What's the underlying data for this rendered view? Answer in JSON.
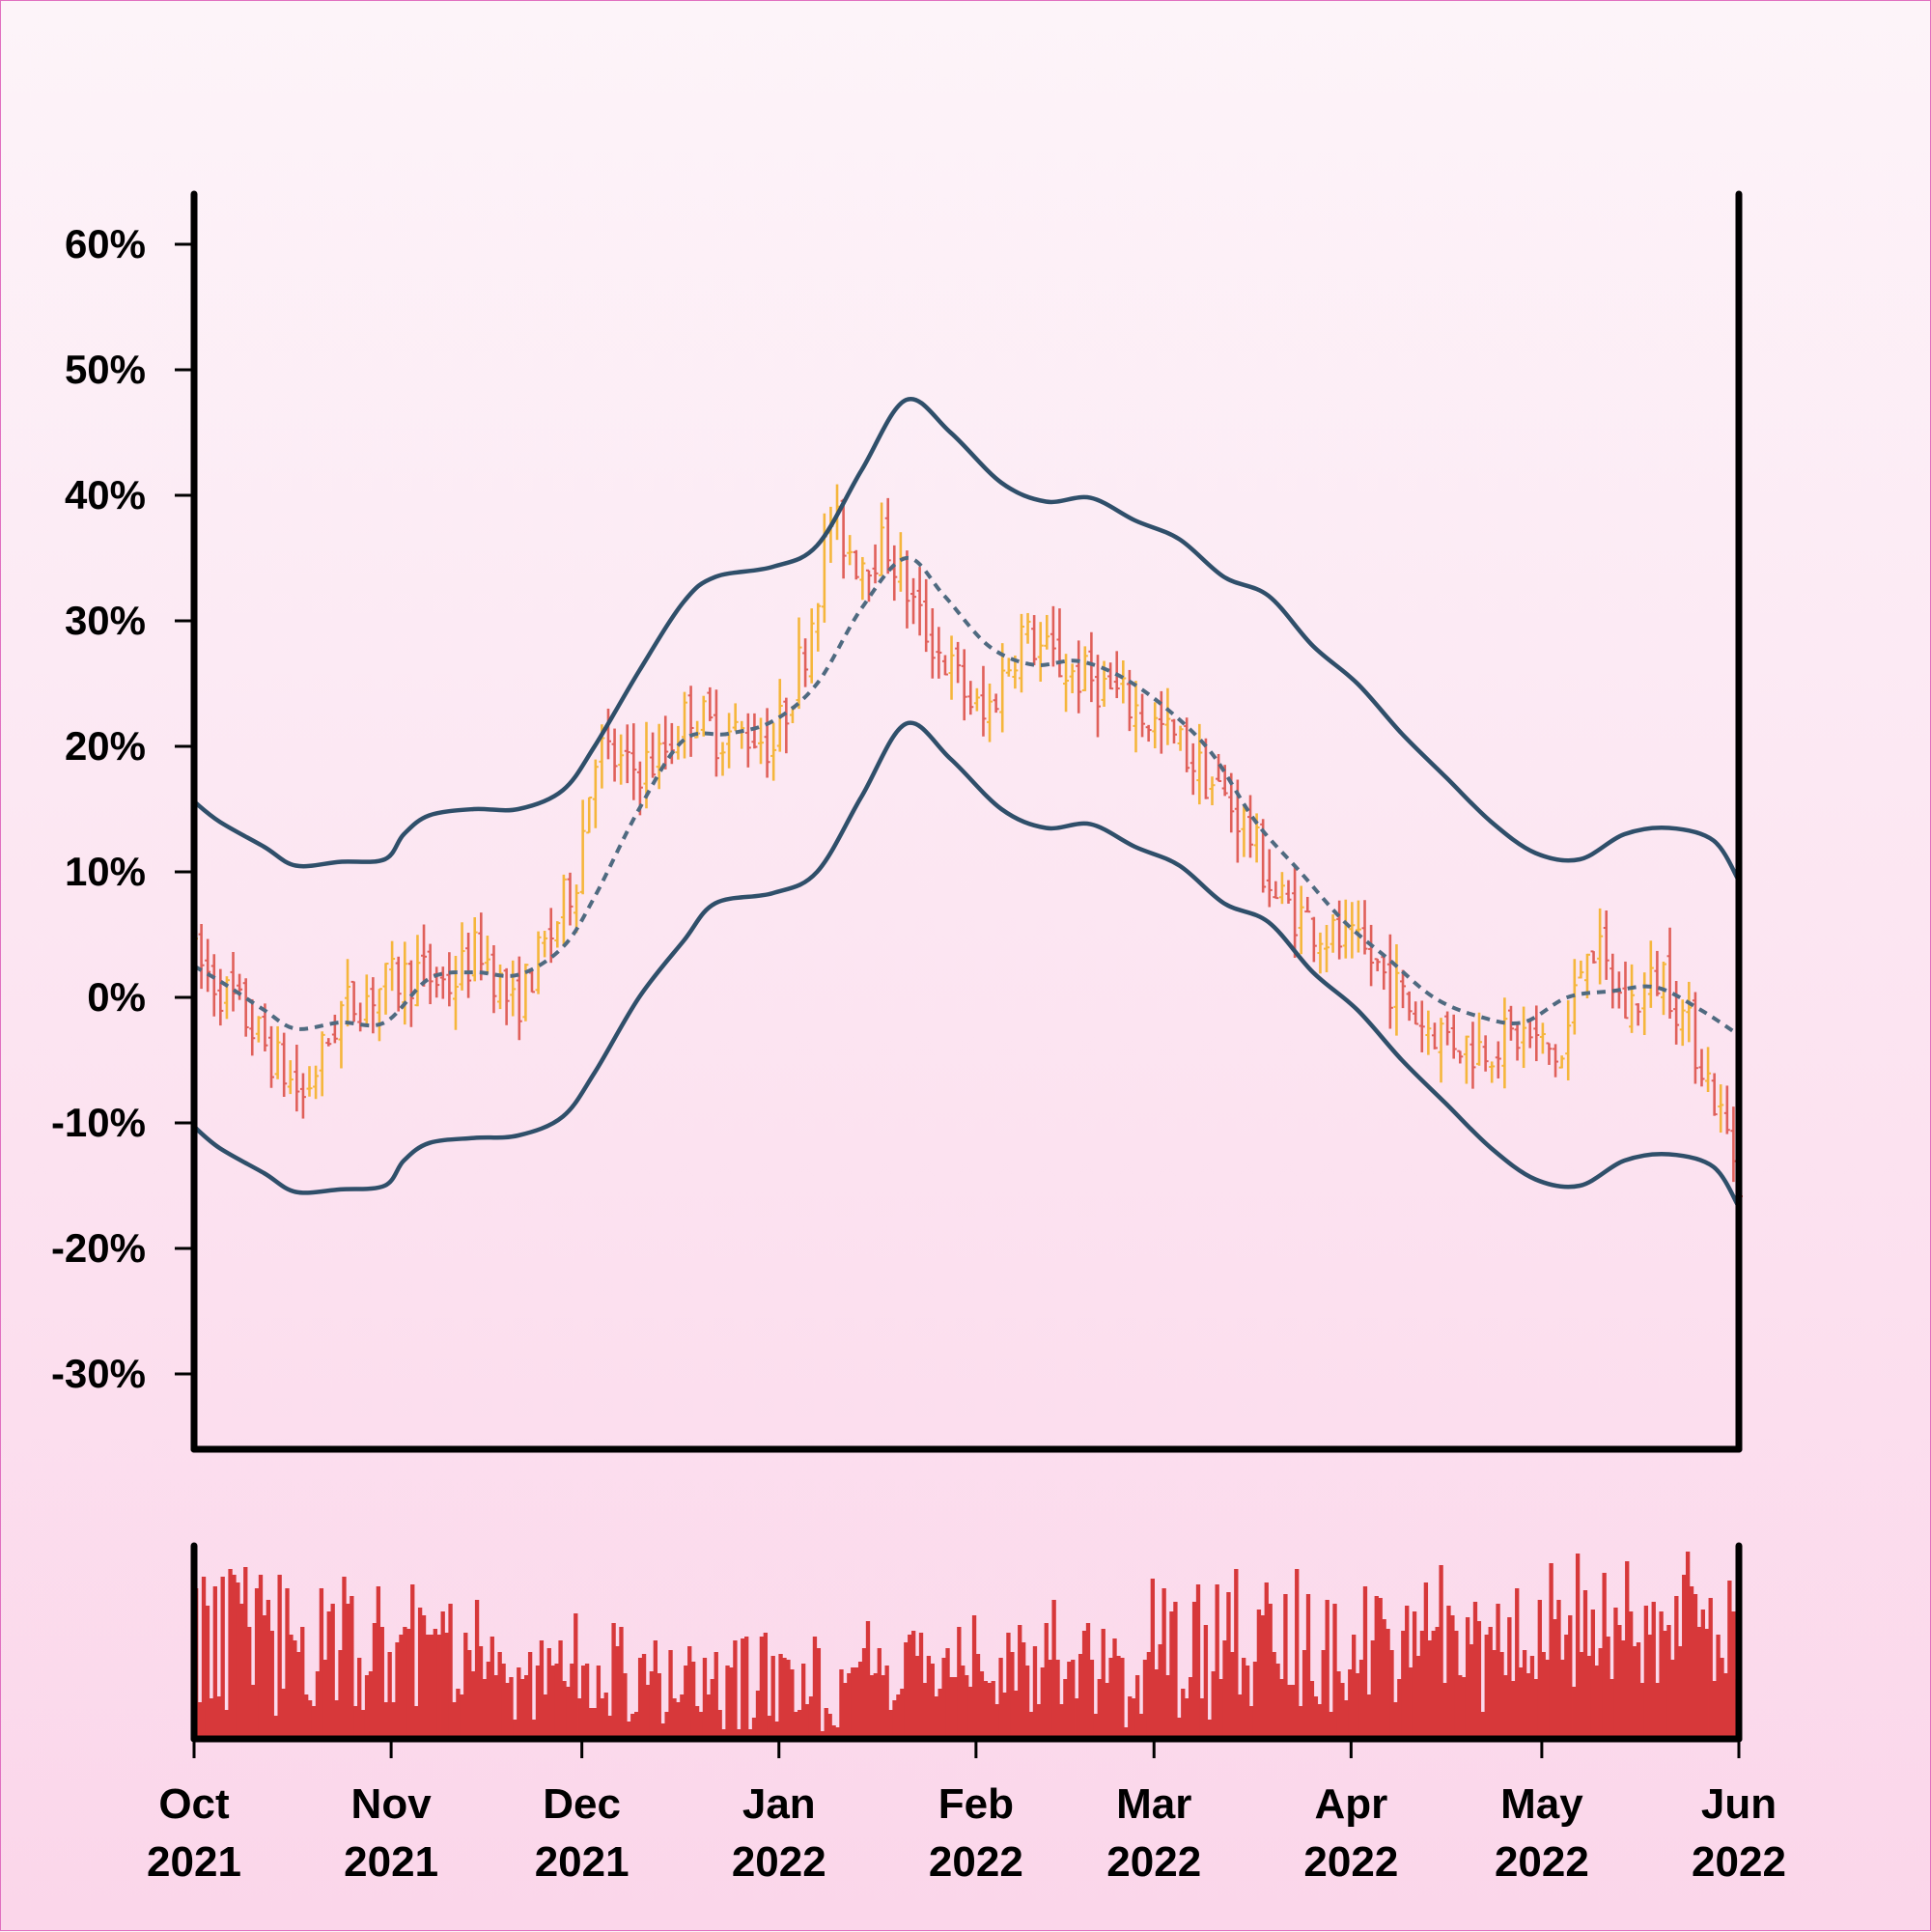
{
  "colors": {
    "up": "#f5b63c",
    "down": "#e0605a",
    "band": "#2f4f6a",
    "ma": "#4f6a80",
    "volume": "#d7383a",
    "axis": "#000000"
  },
  "chart_data": {
    "type": "ohlc",
    "title": "",
    "xlabel": "",
    "ylabel": "",
    "ylim": [
      -36,
      64
    ],
    "yticks": [
      -30,
      -20,
      -10,
      0,
      10,
      20,
      30,
      40,
      50,
      60
    ],
    "ytick_labels": [
      "-30%",
      "-20%",
      "-10%",
      "0%",
      "10%",
      "20%",
      "30%",
      "40%",
      "50%",
      "60%"
    ],
    "xlim": [
      "2021-10-01",
      "2022-06-01"
    ],
    "xticks": [
      {
        "date": "2021-10-01",
        "month": "Oct",
        "year": "2021"
      },
      {
        "date": "2021-11-01",
        "month": "Nov",
        "year": "2021"
      },
      {
        "date": "2021-12-01",
        "month": "Dec",
        "year": "2021"
      },
      {
        "date": "2022-01-01",
        "month": "Jan",
        "year": "2022"
      },
      {
        "date": "2022-02-01",
        "month": "Feb",
        "year": "2022"
      },
      {
        "date": "2022-03-01",
        "month": "Mar",
        "year": "2022"
      },
      {
        "date": "2022-04-01",
        "month": "Apr",
        "year": "2022"
      },
      {
        "date": "2022-05-01",
        "month": "May",
        "year": "2022"
      },
      {
        "date": "2022-06-01",
        "month": "Jun",
        "year": "2022"
      }
    ],
    "price_anchors": [
      [
        "2021-10-01",
        3
      ],
      [
        "2021-10-08",
        -1
      ],
      [
        "2021-10-15",
        -6
      ],
      [
        "2021-10-18",
        -8
      ],
      [
        "2021-10-24",
        -1
      ],
      [
        "2021-10-31",
        1
      ],
      [
        "2021-11-05",
        2
      ],
      [
        "2021-11-10",
        1
      ],
      [
        "2021-11-15",
        4
      ],
      [
        "2021-11-20",
        -1
      ],
      [
        "2021-11-26",
        5
      ],
      [
        "2021-11-30",
        10
      ],
      [
        "2021-12-03",
        20
      ],
      [
        "2021-12-08",
        18
      ],
      [
        "2021-12-13",
        19
      ],
      [
        "2021-12-18",
        23
      ],
      [
        "2021-12-22",
        21
      ],
      [
        "2021-12-28",
        21
      ],
      [
        "2021-12-31",
        20
      ],
      [
        "2022-01-05",
        28
      ],
      [
        "2022-01-09",
        38
      ],
      [
        "2022-01-13",
        35
      ],
      [
        "2022-01-18",
        36
      ],
      [
        "2022-01-23",
        30
      ],
      [
        "2022-01-28",
        26
      ],
      [
        "2022-02-02",
        22
      ],
      [
        "2022-02-08",
        29
      ],
      [
        "2022-02-15",
        26
      ],
      [
        "2022-02-20",
        25
      ],
      [
        "2022-02-26",
        23
      ],
      [
        "2022-03-05",
        20
      ],
      [
        "2022-03-10",
        17
      ],
      [
        "2022-03-15",
        14
      ],
      [
        "2022-03-20",
        8
      ],
      [
        "2022-03-28",
        5
      ],
      [
        "2022-04-04",
        3
      ],
      [
        "2022-04-12",
        -2
      ],
      [
        "2022-04-20",
        -4
      ],
      [
        "2022-04-28",
        -3
      ],
      [
        "2022-05-04",
        -5
      ],
      [
        "2022-05-08",
        5
      ],
      [
        "2022-05-14",
        -1
      ],
      [
        "2022-05-20",
        2
      ],
      [
        "2022-05-26",
        -5
      ],
      [
        "2022-06-01",
        -14
      ]
    ],
    "moving_average": [
      [
        "2021-10-01",
        2.5
      ],
      [
        "2021-10-06",
        1
      ],
      [
        "2021-10-12",
        -1
      ],
      [
        "2021-10-17",
        -2.5
      ],
      [
        "2021-10-24",
        -2
      ],
      [
        "2021-10-31",
        -2
      ],
      [
        "2021-11-07",
        1.5
      ],
      [
        "2021-11-14",
        2
      ],
      [
        "2021-11-21",
        1.8
      ],
      [
        "2021-11-28",
        4
      ],
      [
        "2021-12-03",
        8
      ],
      [
        "2021-12-10",
        15
      ],
      [
        "2021-12-17",
        20.5
      ],
      [
        "2021-12-24",
        21
      ],
      [
        "2021-12-31",
        22
      ],
      [
        "2022-01-07",
        25
      ],
      [
        "2022-01-14",
        31
      ],
      [
        "2022-01-21",
        35
      ],
      [
        "2022-01-27",
        32
      ],
      [
        "2022-02-03",
        28
      ],
      [
        "2022-02-10",
        26.5
      ],
      [
        "2022-02-17",
        26.8
      ],
      [
        "2022-02-24",
        25.5
      ],
      [
        "2022-03-03",
        23
      ],
      [
        "2022-03-10",
        19.5
      ],
      [
        "2022-03-17",
        14
      ],
      [
        "2022-03-24",
        10
      ],
      [
        "2022-03-31",
        6
      ],
      [
        "2022-04-07",
        3
      ],
      [
        "2022-04-14",
        0
      ],
      [
        "2022-04-21",
        -1.5
      ],
      [
        "2022-04-28",
        -2
      ],
      [
        "2022-05-05",
        0
      ],
      [
        "2022-05-12",
        0.5
      ],
      [
        "2022-05-19",
        0.8
      ],
      [
        "2022-05-26",
        -1
      ],
      [
        "2022-06-01",
        -3
      ]
    ],
    "upper_band": [
      [
        "2021-10-01",
        15.6
      ],
      [
        "2021-10-05",
        14
      ],
      [
        "2021-10-12",
        12
      ],
      [
        "2021-10-17",
        10.5
      ],
      [
        "2021-10-24",
        10.8
      ],
      [
        "2021-10-31",
        11
      ],
      [
        "2021-11-03",
        13
      ],
      [
        "2021-11-07",
        14.5
      ],
      [
        "2021-11-14",
        15
      ],
      [
        "2021-11-21",
        15
      ],
      [
        "2021-11-28",
        16.5
      ],
      [
        "2021-12-03",
        20
      ],
      [
        "2021-12-10",
        26
      ],
      [
        "2021-12-17",
        31.5
      ],
      [
        "2021-12-22",
        33.5
      ],
      [
        "2021-12-31",
        34.3
      ],
      [
        "2022-01-07",
        36
      ],
      [
        "2022-01-14",
        42
      ],
      [
        "2022-01-21",
        47.6
      ],
      [
        "2022-01-28",
        45
      ],
      [
        "2022-02-05",
        41
      ],
      [
        "2022-02-12",
        39.5
      ],
      [
        "2022-02-19",
        39.8
      ],
      [
        "2022-02-26",
        38
      ],
      [
        "2022-03-05",
        36.5
      ],
      [
        "2022-03-12",
        33.5
      ],
      [
        "2022-03-19",
        32
      ],
      [
        "2022-03-26",
        28
      ],
      [
        "2022-04-02",
        25
      ],
      [
        "2022-04-09",
        21
      ],
      [
        "2022-04-16",
        17.5
      ],
      [
        "2022-04-23",
        14
      ],
      [
        "2022-04-30",
        11.5
      ],
      [
        "2022-05-07",
        11
      ],
      [
        "2022-05-14",
        13
      ],
      [
        "2022-05-21",
        13.5
      ],
      [
        "2022-05-28",
        12.5
      ],
      [
        "2022-06-01",
        9.3
      ]
    ],
    "lower_band": [
      [
        "2021-10-01",
        -10.3
      ],
      [
        "2021-10-05",
        -12
      ],
      [
        "2021-10-12",
        -14
      ],
      [
        "2021-10-17",
        -15.5
      ],
      [
        "2021-10-24",
        -15.3
      ],
      [
        "2021-10-31",
        -15
      ],
      [
        "2021-11-03",
        -13
      ],
      [
        "2021-11-07",
        -11.6
      ],
      [
        "2021-11-14",
        -11.2
      ],
      [
        "2021-11-21",
        -11
      ],
      [
        "2021-11-28",
        -9.5
      ],
      [
        "2021-12-03",
        -6
      ],
      [
        "2021-12-10",
        0
      ],
      [
        "2021-12-17",
        4.5
      ],
      [
        "2021-12-22",
        7.5
      ],
      [
        "2021-12-31",
        8.3
      ],
      [
        "2022-01-07",
        10
      ],
      [
        "2022-01-14",
        16
      ],
      [
        "2022-01-21",
        21.8
      ],
      [
        "2022-01-28",
        19
      ],
      [
        "2022-02-05",
        15
      ],
      [
        "2022-02-12",
        13.5
      ],
      [
        "2022-02-19",
        13.8
      ],
      [
        "2022-02-26",
        12
      ],
      [
        "2022-03-05",
        10.5
      ],
      [
        "2022-03-12",
        7.5
      ],
      [
        "2022-03-19",
        6
      ],
      [
        "2022-03-26",
        2
      ],
      [
        "2022-04-02",
        -1
      ],
      [
        "2022-04-09",
        -5
      ],
      [
        "2022-04-16",
        -8.5
      ],
      [
        "2022-04-23",
        -12
      ],
      [
        "2022-04-30",
        -14.5
      ],
      [
        "2022-05-07",
        -15
      ],
      [
        "2022-05-14",
        -13
      ],
      [
        "2022-05-21",
        -12.5
      ],
      [
        "2022-05-28",
        -13.5
      ],
      [
        "2022-06-01",
        -16.7
      ]
    ],
    "volume": {
      "ylim": [
        0,
        100
      ],
      "values": [
        78,
        19,
        84,
        69,
        21,
        79,
        22,
        84,
        15,
        88,
        85,
        81,
        70,
        89,
        58,
        28,
        78,
        85,
        64,
        72,
        56,
        12,
        85,
        26,
        78,
        54,
        51,
        45,
        58,
        23,
        20,
        17,
        35,
        78,
        41,
        66,
        70,
        20,
        46,
        84,
        70,
        74,
        17,
        42,
        15,
        33,
        35,
        60,
        79,
        58,
        19,
        45,
        19,
        50,
        54,
        58,
        57,
        80,
        17,
        68,
        64,
        54,
        54,
        57,
        54,
        66,
        55,
        70,
        19,
        26,
        23,
        55,
        46,
        35,
        72,
        48,
        31,
        40,
        53,
        33,
        45,
        39,
        29,
        32,
        10,
        37,
        31,
        33,
        45,
        10,
        38,
        51,
        23,
        47,
        38,
        39,
        51,
        30,
        27,
        39,
        65,
        21,
        38,
        39,
        16,
        16,
        38,
        21,
        24,
        12,
        60,
        48,
        58,
        34,
        9,
        13,
        14,
        42,
        44,
        28,
        35,
        51,
        34,
        8,
        14,
        46,
        21,
        19,
        23,
        38,
        48,
        40,
        17,
        14,
        42,
        23,
        31,
        45,
        15,
        5,
        38,
        37,
        51,
        5,
        52,
        53,
        5,
        11,
        25,
        53,
        55,
        12,
        43,
        9,
        44,
        42,
        41,
        36,
        14,
        15,
        39,
        18,
        22,
        53,
        47,
        4,
        16,
        13,
        7,
        6,
        36,
        29,
        34,
        37,
        37,
        40,
        47,
        61,
        33,
        34,
        47,
        33,
        38,
        15,
        20,
        23,
        26,
        50,
        54,
        56,
        43,
        55,
        29,
        43,
        39,
        22,
        26,
        42,
        47,
        32,
        32,
        58,
        38,
        33,
        27,
        64,
        44,
        35,
        30,
        29,
        30,
        18,
        42,
        24,
        55,
        45,
        25,
        59,
        50,
        38,
        14,
        48,
        18,
        37,
        60,
        41,
        72,
        41,
        18,
        31,
        40,
        41,
        21,
        44,
        56,
        60,
        41,
        13,
        31,
        57,
        29,
        42,
        52,
        43,
        42,
        6,
        22,
        21,
        33,
        13,
        41,
        45,
        83,
        36,
        49,
        78,
        33,
        66,
        71,
        11,
        26,
        21,
        32,
        71,
        80,
        21,
        59,
        10,
        35,
        80,
        31,
        51,
        76,
        45,
        88,
        23,
        42,
        38,
        17,
        40,
        67,
        64,
        81,
        70,
        45,
        39,
        31,
        75,
        28,
        28,
        88,
        17,
        46,
        75,
        30,
        22,
        18,
        46,
        72,
        14,
        70,
        35,
        29,
        20,
        36,
        54,
        34,
        41,
        79,
        23,
        51,
        74,
        73,
        62,
        57,
        46,
        19,
        31,
        56,
        69,
        37,
        66,
        43,
        56,
        81,
        51,
        56,
        58,
        90,
        29,
        69,
        64,
        56,
        33,
        32,
        63,
        49,
        71,
        61,
        14,
        54,
        58,
        46,
        70,
        45,
        33,
        63,
        30,
        78,
        37,
        46,
        34,
        43,
        31,
        72,
        45,
        41,
        91,
        62,
        72,
        41,
        54,
        64,
        27,
        96,
        45,
        77,
        43,
        67,
        38,
        47,
        86,
        53,
        31,
        68,
        59,
        51,
        92,
        66,
        48,
        50,
        29,
        69,
        54,
        71,
        29,
        66,
        56,
        59,
        41,
        74,
        48,
        85,
        97,
        79,
        75,
        58,
        67,
        57,
        73,
        30,
        54,
        42,
        34,
        82,
        66,
        31
      ]
    }
  }
}
